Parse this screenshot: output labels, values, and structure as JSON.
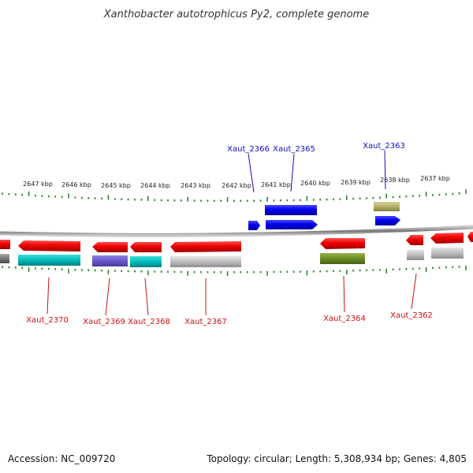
{
  "title": "Xanthobacter autotrophicus Py2, complete genome",
  "footer": {
    "accession": "Accession: NC_009720",
    "summary": "Topology: circular; Length: 5,308,934 bp; Genes: 4,805"
  },
  "colors": {
    "backbone": "#888888",
    "tick": "#2a8a2a",
    "label_plus": "#1010c0",
    "label_minus": "#cc1010"
  },
  "kbp_labels": [
    "2647 kbp",
    "2646 kbp",
    "2645 kbp",
    "2644 kbp",
    "2643 kbp",
    "2642 kbp",
    "2641 kbp",
    "2640 kbp",
    "2639 kbp",
    "2638 kbp",
    "2637 kbp"
  ],
  "gene_labels": {
    "plus": [
      "Xaut_2366",
      "Xaut_2365",
      "Xaut_2363"
    ],
    "minus": [
      "Xaut_2370",
      "Xaut_2369",
      "Xaut_2368",
      "Xaut_2367",
      "Xaut_2364",
      "Xaut_2362"
    ]
  }
}
